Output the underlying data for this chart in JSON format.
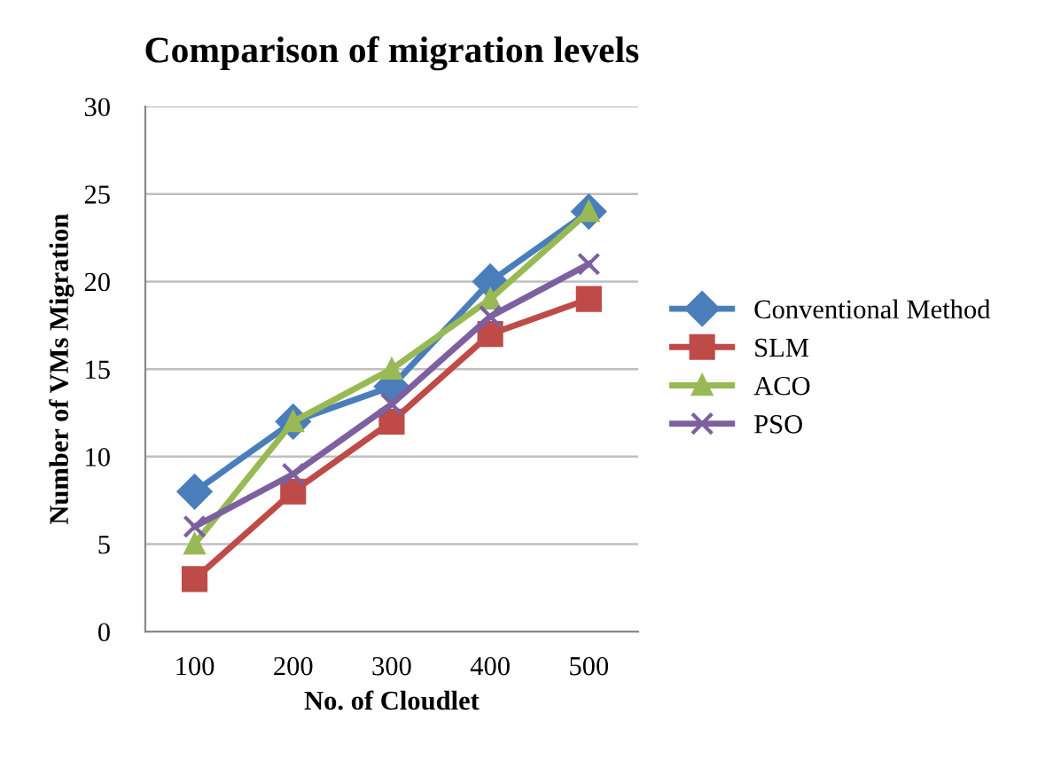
{
  "chart_data": {
    "type": "line",
    "title": "Comparison of migration levels",
    "xlabel": "No. of Cloudlet",
    "ylabel": "Number of VMs Migration",
    "categories": [
      "100",
      "200",
      "300",
      "400",
      "500"
    ],
    "series": [
      {
        "name": "Conventional Method",
        "color": "#4a7ebb",
        "marker": "diamond",
        "values": [
          8,
          12,
          14,
          20,
          24
        ]
      },
      {
        "name": "SLM",
        "color": "#be4b48",
        "marker": "square",
        "values": [
          3,
          8,
          12,
          17,
          19
        ]
      },
      {
        "name": "ACO",
        "color": "#98b954",
        "marker": "triangle",
        "values": [
          5,
          12,
          15,
          19,
          24
        ]
      },
      {
        "name": "PSO",
        "color": "#7d60a0",
        "marker": "cross",
        "values": [
          6,
          9,
          13,
          18,
          21
        ]
      }
    ],
    "ylim": [
      0,
      30
    ],
    "yticks": [
      0,
      5,
      10,
      15,
      20,
      25,
      30
    ],
    "grid": "y",
    "legend": "right"
  }
}
